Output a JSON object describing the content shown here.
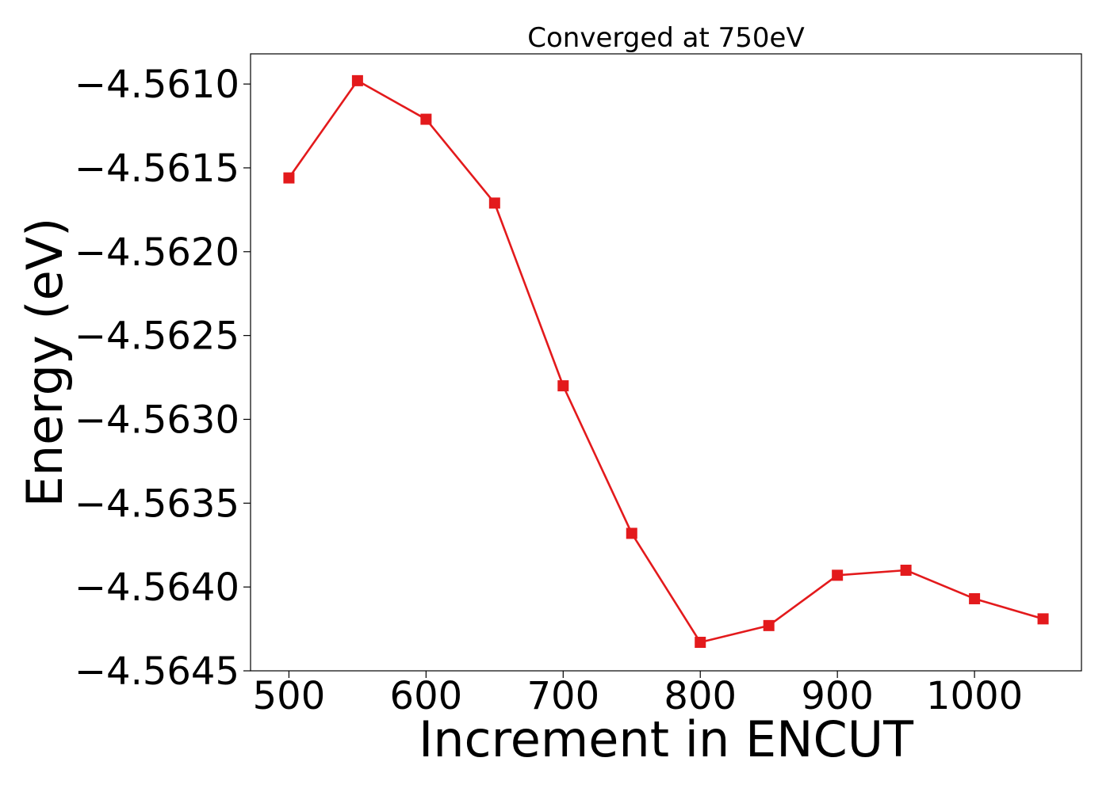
{
  "chart_data": {
    "type": "line",
    "title": "Converged at 750eV",
    "xlabel": "Increment in ENCUT",
    "ylabel": "Energy (eV)",
    "xlim": [
      472,
      1078
    ],
    "ylim": [
      -4.5645,
      -4.56082
    ],
    "xticks": [
      500,
      600,
      700,
      800,
      900,
      1000
    ],
    "xtick_labels": [
      "500",
      "600",
      "700",
      "800",
      "900",
      "1000"
    ],
    "yticks": [
      -4.5645,
      -4.564,
      -4.5635,
      -4.563,
      -4.5625,
      -4.562,
      -4.5615,
      -4.561
    ],
    "ytick_labels": [
      "−4.5645",
      "−4.5640",
      "−4.5635",
      "−4.5630",
      "−4.5625",
      "−4.5620",
      "−4.5615",
      "−4.5610"
    ],
    "grid": false,
    "series": [
      {
        "color": "#e31a1c",
        "marker": "square",
        "x": [
          500,
          550,
          600,
          650,
          700,
          750,
          800,
          850,
          900,
          950,
          1000,
          1050
        ],
        "y": [
          -4.56156,
          -4.56098,
          -4.56121,
          -4.56171,
          -4.5628,
          -4.56368,
          -4.56433,
          -4.56423,
          -4.56393,
          -4.5639,
          -4.56407,
          -4.56419
        ]
      }
    ]
  }
}
